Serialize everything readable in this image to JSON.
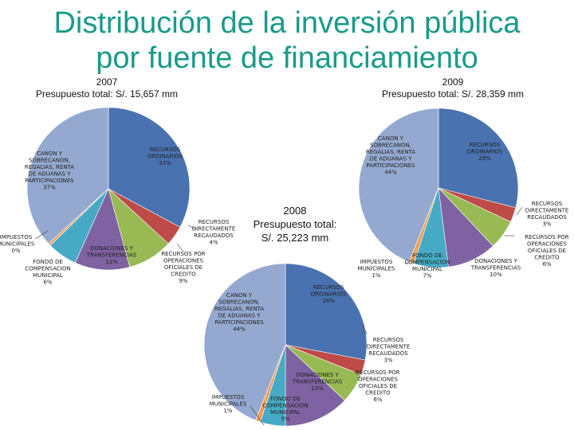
{
  "title": {
    "line1": "Distribución de la inversión pública",
    "line2": "por fuente de financiamiento"
  },
  "chart_data": [
    {
      "type": "pie",
      "year": "2007",
      "subtitle": "Presupuesto total: S/. 15,657 mm",
      "slices": [
        {
          "name": "RECURSOS ORDINARIOS",
          "value": 33,
          "label": "RECURSOS ORDINARIOS 33%",
          "color": "#4a72b0"
        },
        {
          "name": "RECURSOS DIRECTAMENTE RECAUDADOS",
          "value": 4,
          "label": "RECURSOS DIRECTAMENTE RECAUDADOS 4%",
          "color": "#be4b48"
        },
        {
          "name": "RECURSOS POR OPERACIONES OFICIALES DE CREDITO",
          "value": 9,
          "label": "RECURSOS POR OPERACIONES OFICIALES DE CREDITO 9%",
          "color": "#98b954"
        },
        {
          "name": "DONACIONES Y TRANSFERENCIAS",
          "value": 11,
          "label": "DONACIONES Y TRANSFERENCIAS 11%",
          "color": "#7e62a1"
        },
        {
          "name": "FONDO DE COMPENSACION MUNICIPAL",
          "value": 6,
          "label": "FONDO DE COMPENSACION MUNICIPAL 6%",
          "color": "#46aac5"
        },
        {
          "name": "IMPUESTOS MUNICIPALES",
          "value": 0.5,
          "label": "IMPUESTOS MUNICIPALES 0%",
          "color": "#f59d56"
        },
        {
          "name": "CANON Y SOBRECANON, REGALIAS, RENTA DE ADUANAS Y PARTICIPACIONES",
          "value": 37,
          "label": "CANON Y SOBRECANON, REGALIAS, RENTA DE ADUANAS Y PARTICIPACIONES 37%",
          "color": "#95a9d0"
        }
      ]
    },
    {
      "type": "pie",
      "year": "2008",
      "subtitle": "Presupuesto total: S/. 25,223 mm",
      "slices": [
        {
          "name": "RECURSOS ORDINARIOS",
          "value": 28,
          "label": "RECURSOS ORDINARIOS 28%",
          "color": "#4a72b0"
        },
        {
          "name": "RECURSOS DIRECTAMENTE RECAUDADOS",
          "value": 3,
          "label": "RECURSOS DIRECTAMENTE RECAUDADOS 3%",
          "color": "#be4b48"
        },
        {
          "name": "RECURSOS POR OPERACIONES OFICIALES DE CREDITO",
          "value": 6,
          "label": "RECURSOS POR OPERACIONES OFICIALES DE CREDITO 6%",
          "color": "#98b954"
        },
        {
          "name": "DONACIONES Y TRANSFERENCIAS",
          "value": 13,
          "label": "DONACIONES Y TRANSFERENCIAS 13%",
          "color": "#7e62a1"
        },
        {
          "name": "FONDO DE COMPENSACION MUNICIPAL",
          "value": 5,
          "label": "FONDO DE COMPENSACION MUNICIPAL 5%",
          "color": "#46aac5"
        },
        {
          "name": "IMPUESTOS MUNICIPALES",
          "value": 1,
          "label": "IMPUESTOS MUNICIPALES 1%",
          "color": "#f59d56"
        },
        {
          "name": "CANON Y SOBRECANON, REGALIAS, RENTA DE ADUANAS Y PARTICIPACIONES",
          "value": 44,
          "label": "CANON Y SOBRECANON, REGALIAS, RENTA DE ADUANAS Y PARTICIPACIONES 44%",
          "color": "#95a9d0"
        }
      ]
    },
    {
      "type": "pie",
      "year": "2009",
      "subtitle": "Presupuesto total: S/. 28,359 mm",
      "slices": [
        {
          "name": "RECURSOS ORDINARIOS",
          "value": 29,
          "label": "RECURSOS ORDINARIOS 29%",
          "color": "#4a72b0"
        },
        {
          "name": "RECURSOS DIRECTAMENTE RECAUDADOS",
          "value": 3,
          "label": "RECURSOS DIRECTAMENTE RECAUDADOS 3%",
          "color": "#be4b48"
        },
        {
          "name": "RECURSOS POR OPERACIONES OFICIALES DE CREDITO",
          "value": 6,
          "label": "RECURSOS POR OPERACIONES OFICIALES DE CREDITO 6%",
          "color": "#98b954"
        },
        {
          "name": "DONACIONES Y TRANSFERENCIAS",
          "value": 10,
          "label": "DONACIONES Y TRANSFERENCIAS 10%",
          "color": "#7e62a1"
        },
        {
          "name": "FONDO DE COMPENSACION MUNICIPAL",
          "value": 7,
          "label": "FONDO DE COMPENSACION MUNICIPAL 7%",
          "color": "#46aac5"
        },
        {
          "name": "IMPUESTOS MUNICIPALES",
          "value": 1,
          "label": "IMPUESTOS MUNICIPALES 1%",
          "color": "#f59d56"
        },
        {
          "name": "CANON Y SOBRECANON, REGALIAS, RENTA DE ADUANAS Y PARTICIPACIONES",
          "value": 44,
          "label": "CANON Y SOBRECANON, REGALIAS, RENTA DE ADUANAS Y PARTICIPACIONES 44%",
          "color": "#95a9d0"
        }
      ]
    }
  ]
}
